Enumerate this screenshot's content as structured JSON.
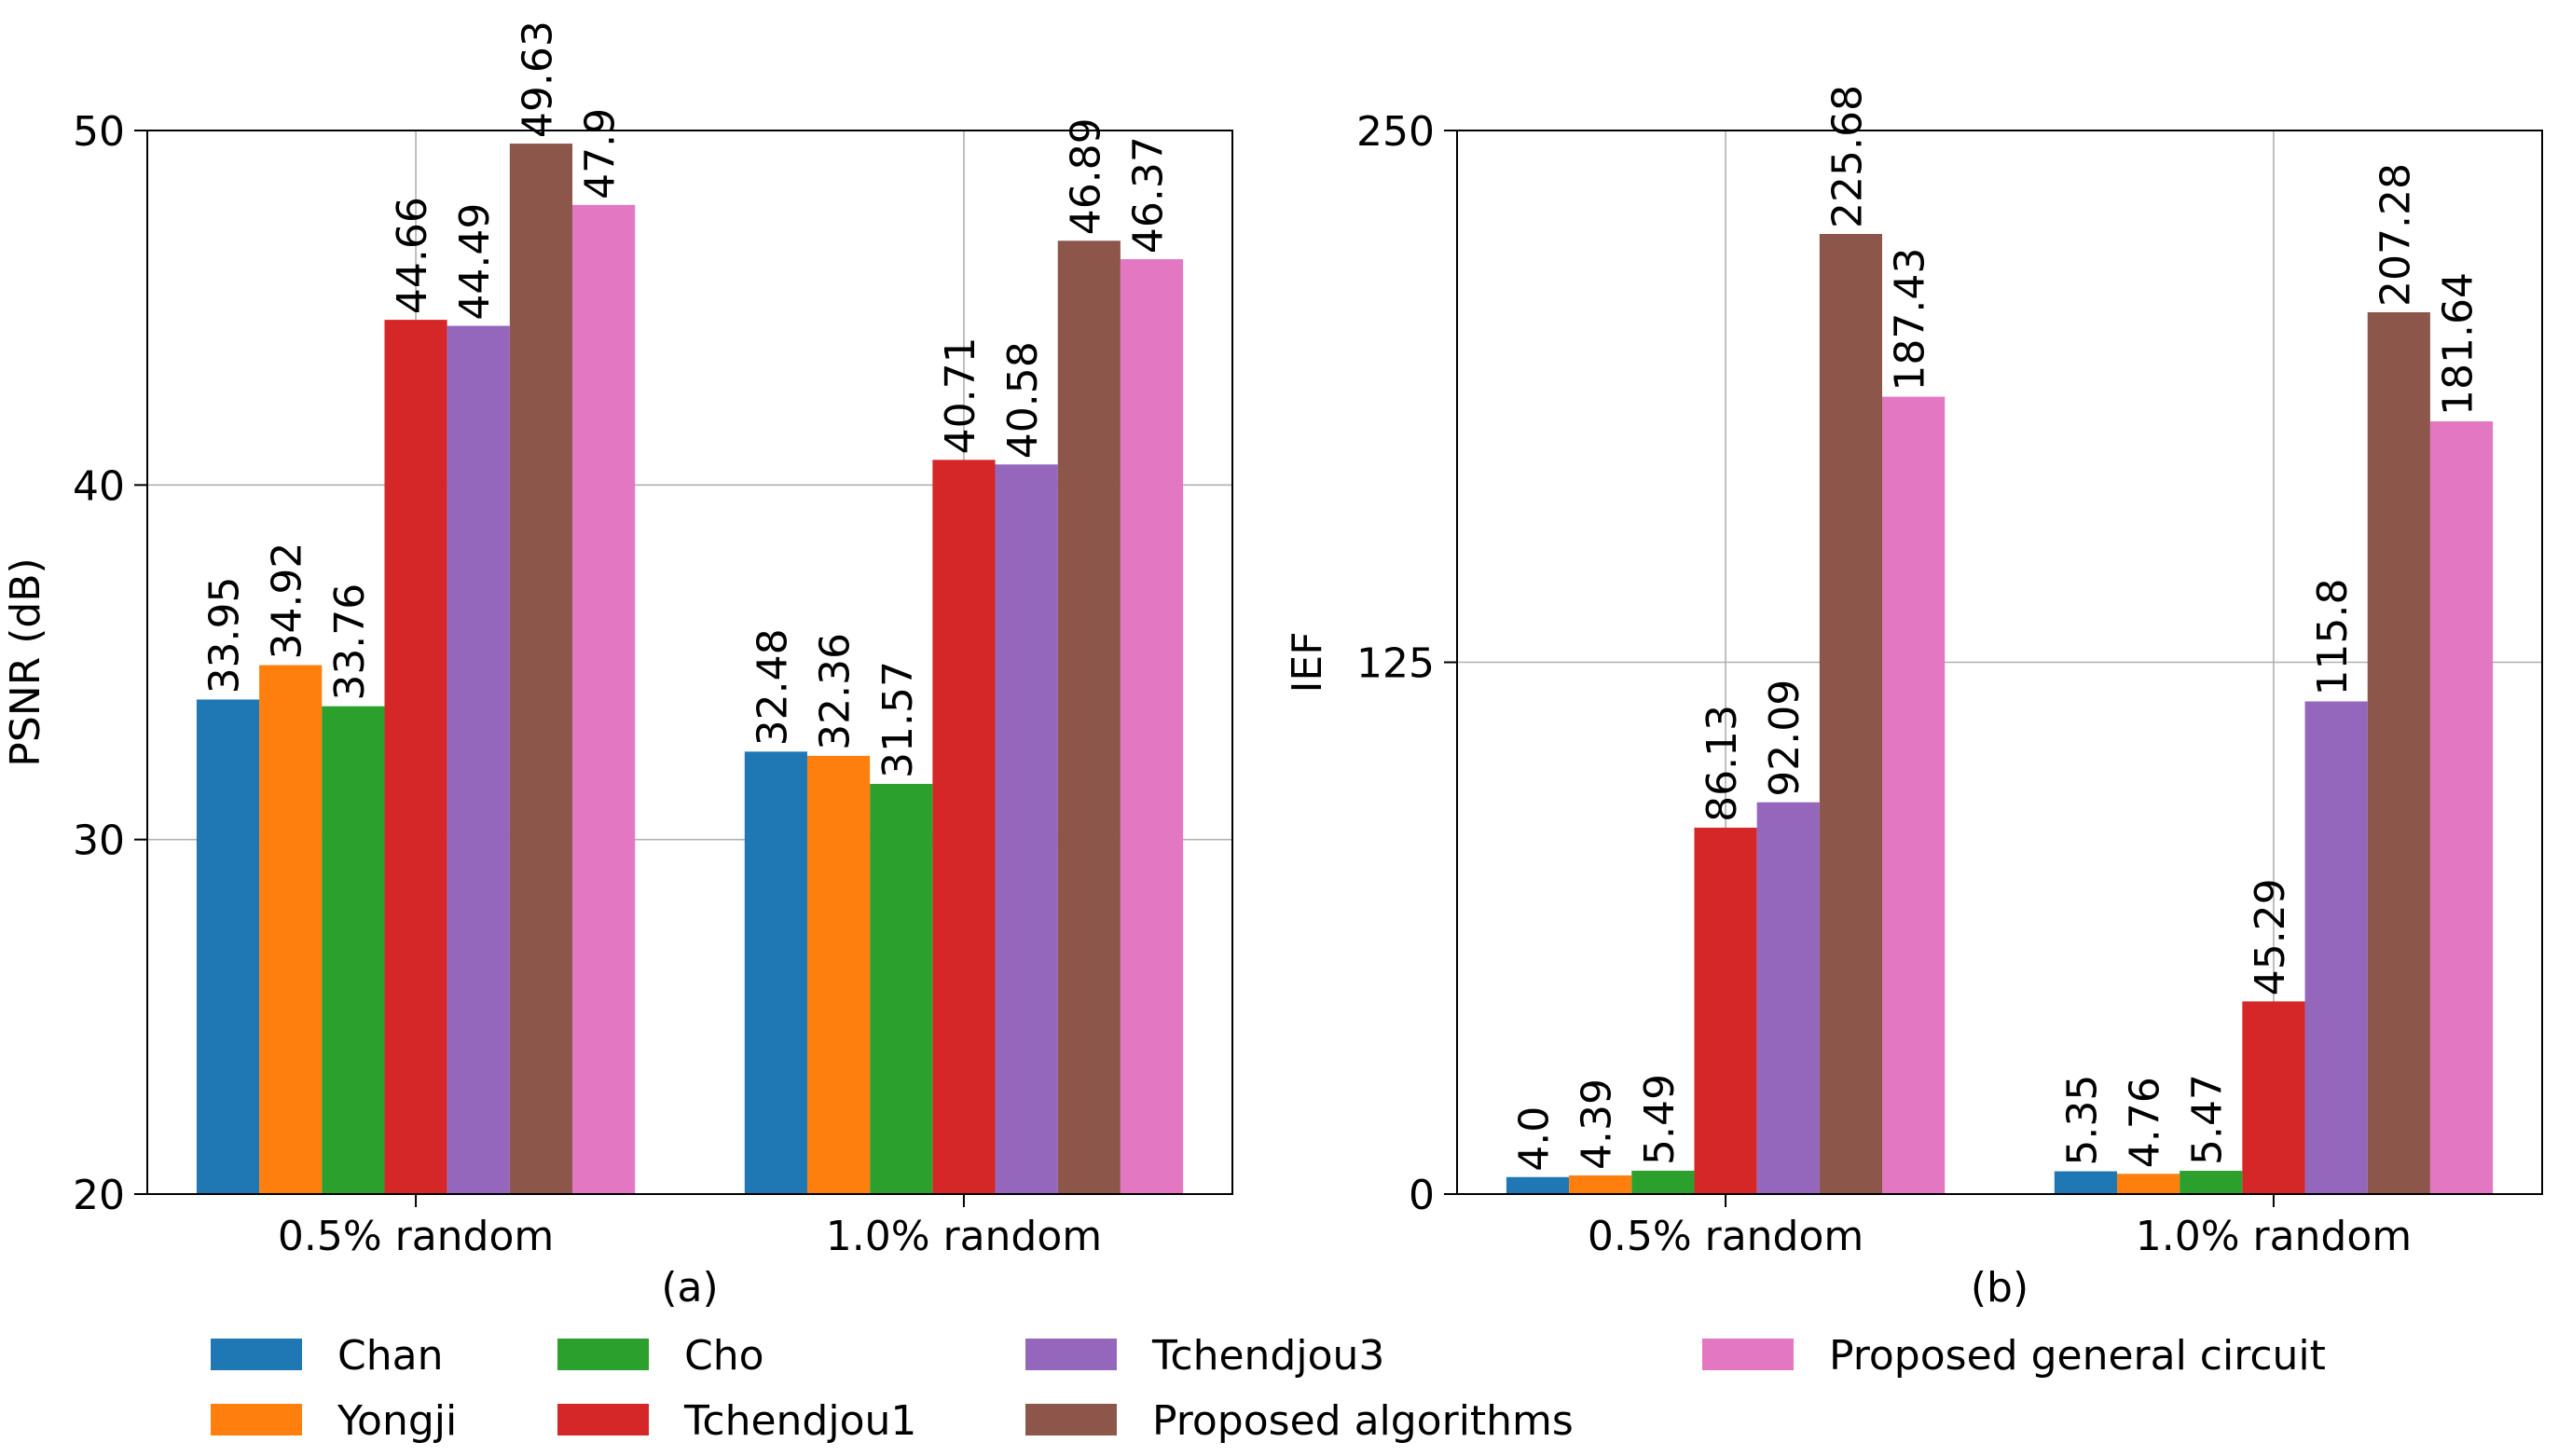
{
  "chart_data": [
    {
      "type": "bar",
      "panel_label": "(a)",
      "ylabel": "PSNR (dB)",
      "xlabel": "",
      "ylim": [
        20,
        50
      ],
      "yticks": [
        20,
        30,
        40,
        50
      ],
      "grid": true,
      "categories": [
        "0.5% random",
        "1.0% random"
      ],
      "series": [
        {
          "name": "Chan",
          "values": [
            33.95,
            32.48
          ],
          "labels": [
            "33.95",
            "32.48"
          ]
        },
        {
          "name": "Yongji",
          "values": [
            34.92,
            32.36
          ],
          "labels": [
            "34.92",
            "32.36"
          ]
        },
        {
          "name": "Cho",
          "values": [
            33.76,
            31.57
          ],
          "labels": [
            "33.76",
            "31.57"
          ]
        },
        {
          "name": "Tchendjou1",
          "values": [
            44.66,
            40.71
          ],
          "labels": [
            "44.66",
            "40.71"
          ]
        },
        {
          "name": "Tchendjou3",
          "values": [
            44.49,
            40.58
          ],
          "labels": [
            "44.49",
            "40.58"
          ]
        },
        {
          "name": "Proposed algorithms",
          "values": [
            49.63,
            46.89
          ],
          "labels": [
            "49.63",
            "46.89"
          ]
        },
        {
          "name": "Proposed general circuit",
          "values": [
            47.9,
            46.37
          ],
          "labels": [
            "47.9",
            "46.37"
          ]
        }
      ]
    },
    {
      "type": "bar",
      "panel_label": "(b)",
      "ylabel": "IEF",
      "xlabel": "",
      "ylim": [
        0,
        250
      ],
      "yticks": [
        0,
        125,
        250
      ],
      "grid": true,
      "categories": [
        "0.5% random",
        "1.0% random"
      ],
      "series": [
        {
          "name": "Chan",
          "values": [
            4.0,
            5.35
          ],
          "labels": [
            "4.0",
            "5.35"
          ]
        },
        {
          "name": "Yongji",
          "values": [
            4.39,
            4.76
          ],
          "labels": [
            "4.39",
            "4.76"
          ]
        },
        {
          "name": "Cho",
          "values": [
            5.49,
            5.47
          ],
          "labels": [
            "5.49",
            "5.47"
          ]
        },
        {
          "name": "Tchendjou1",
          "values": [
            86.13,
            45.29
          ],
          "labels": [
            "86.13",
            "45.29"
          ]
        },
        {
          "name": "Tchendjou3",
          "values": [
            92.09,
            115.8
          ],
          "labels": [
            "92.09",
            "115.8"
          ]
        },
        {
          "name": "Proposed algorithms",
          "values": [
            225.68,
            207.28
          ],
          "labels": [
            "225.68",
            "207.28"
          ]
        },
        {
          "name": "Proposed general circuit",
          "values": [
            187.43,
            181.64
          ],
          "labels": [
            "187.43",
            "181.64"
          ]
        }
      ]
    }
  ],
  "legend": {
    "placement": "bottom",
    "entries": [
      {
        "name": "Chan",
        "color": "#1f77b4"
      },
      {
        "name": "Yongji",
        "color": "#ff7f0e"
      },
      {
        "name": "Cho",
        "color": "#2ca02c"
      },
      {
        "name": "Tchendjou1",
        "color": "#d62728"
      },
      {
        "name": "Tchendjou3",
        "color": "#9467bd"
      },
      {
        "name": "Proposed algorithms",
        "color": "#8c564b"
      },
      {
        "name": "Proposed general circuit",
        "color": "#e377c2"
      }
    ]
  },
  "colors": [
    "#1f77b4",
    "#ff7f0e",
    "#2ca02c",
    "#d62728",
    "#9467bd",
    "#8c564b",
    "#e377c2"
  ]
}
